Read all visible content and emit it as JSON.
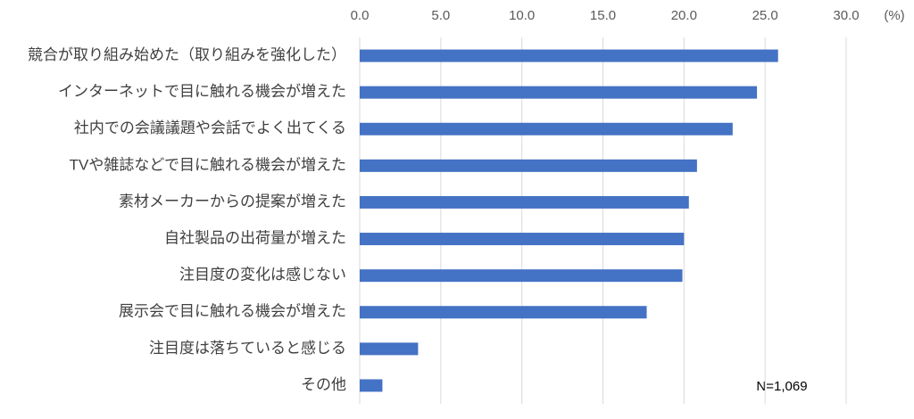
{
  "chart_data": {
    "type": "bar",
    "orientation": "horizontal",
    "categories": [
      "競合が取り組み始めた（取り組みを強化した）",
      "インターネットで目に触れる機会が増えた",
      "社内での会議議題や会話でよく出てくる",
      "TVや雑誌などで目に触れる機会が増えた",
      "素材メーカーからの提案が増えた",
      "自社製品の出荷量が増えた",
      "注目度の変化は感じない",
      "展示会で目に触れる機会が増えた",
      "注目度は落ちていると感じる",
      "その他"
    ],
    "values": [
      25.8,
      24.5,
      23.0,
      20.8,
      20.3,
      20.0,
      19.9,
      17.7,
      3.6,
      1.4
    ],
    "color": "#4472c4",
    "xlim": [
      0,
      30
    ],
    "xticks": [
      {
        "value": 0,
        "label": "0.0"
      },
      {
        "value": 5,
        "label": "5.0"
      },
      {
        "value": 10,
        "label": "10.0"
      },
      {
        "value": 15,
        "label": "15.0"
      },
      {
        "value": 20,
        "label": "20.0"
      },
      {
        "value": 25,
        "label": "25.0"
      },
      {
        "value": 30,
        "label": "30.0"
      }
    ],
    "x_unit": "(%)",
    "annotation": "N=1,069",
    "grid": true
  }
}
